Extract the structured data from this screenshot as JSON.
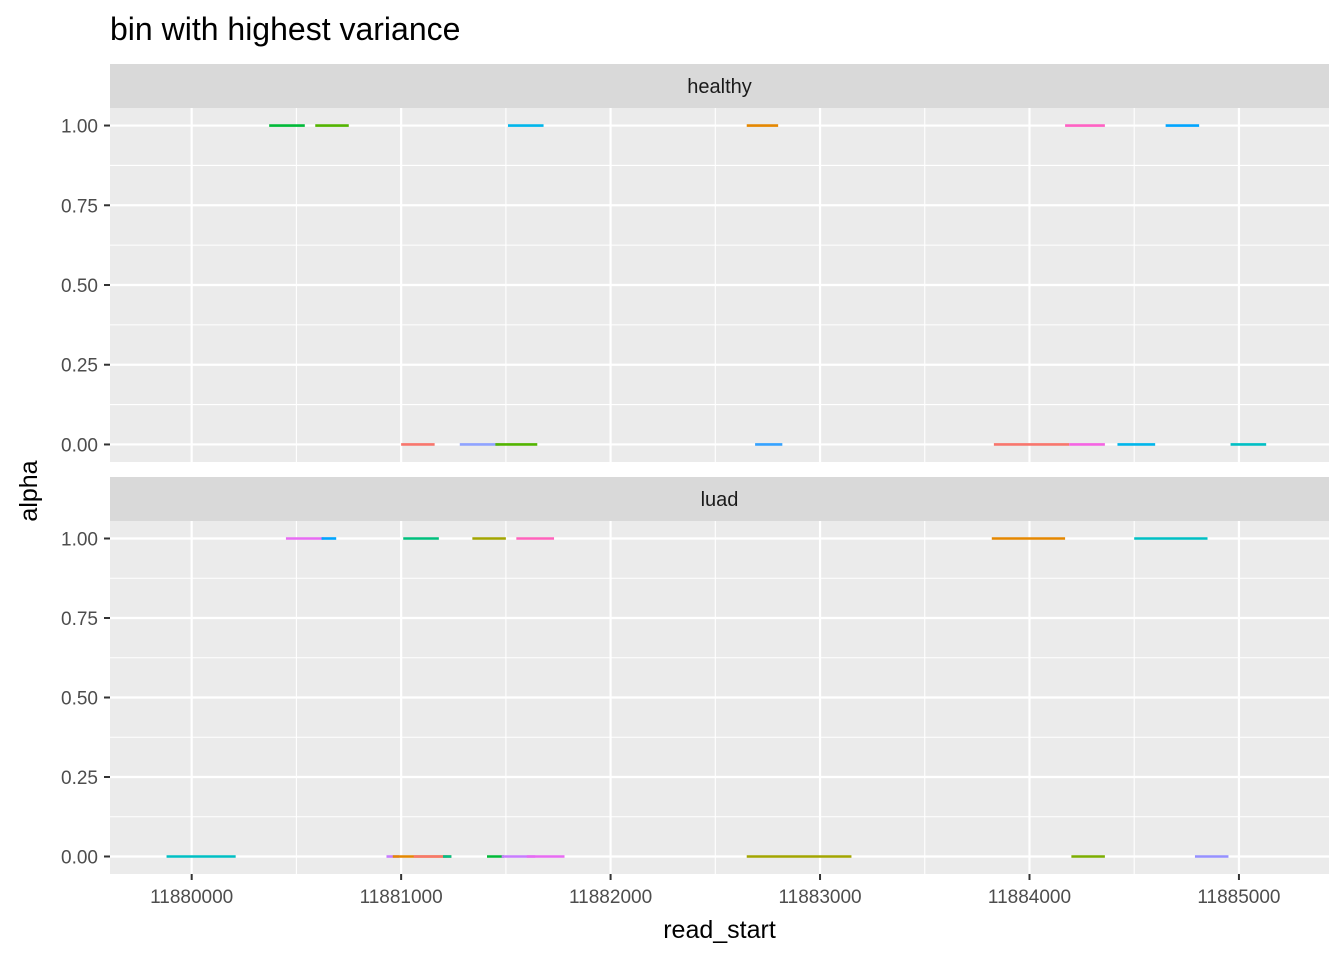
{
  "chart_data": {
    "type": "segment",
    "title": "bin with highest variance",
    "xlabel": "read_start",
    "ylabel": "alpha",
    "xlim": [
      11879610,
      11885430
    ],
    "ylim": [
      -0.055,
      1.055
    ],
    "x_ticks": [
      11880000,
      11881000,
      11882000,
      11883000,
      11884000,
      11885000
    ],
    "x_tick_labels": [
      "11880000",
      "11881000",
      "11882000",
      "11883000",
      "11884000",
      "11885000"
    ],
    "y_ticks": [
      0,
      0.25,
      0.5,
      0.75,
      1
    ],
    "y_tick_labels": [
      "0.00",
      "0.25",
      "0.50",
      "0.75",
      "1.00"
    ],
    "grid": true,
    "legend": "none",
    "panels": [
      {
        "label": "healthy",
        "segments": [
          {
            "x_start": 11880370,
            "x_end": 11880540,
            "y": 1,
            "color": "#00BA38"
          },
          {
            "x_start": 11880590,
            "x_end": 11880750,
            "y": 1,
            "color": "#53B400"
          },
          {
            "x_start": 11881510,
            "x_end": 11881680,
            "y": 1,
            "color": "#00B6EB"
          },
          {
            "x_start": 11882650,
            "x_end": 11882800,
            "y": 1,
            "color": "#E58700"
          },
          {
            "x_start": 11884170,
            "x_end": 11884360,
            "y": 1,
            "color": "#FF61C3"
          },
          {
            "x_start": 11884650,
            "x_end": 11884810,
            "y": 1,
            "color": "#00A5FF"
          },
          {
            "x_start": 11881000,
            "x_end": 11881160,
            "y": 0,
            "color": "#F8766D"
          },
          {
            "x_start": 11881280,
            "x_end": 11881470,
            "y": 0,
            "color": "#8FA3FF"
          },
          {
            "x_start": 11881450,
            "x_end": 11881650,
            "y": 0,
            "color": "#53B400"
          },
          {
            "x_start": 11882690,
            "x_end": 11882820,
            "y": 0,
            "color": "#35A2FF"
          },
          {
            "x_start": 11883830,
            "x_end": 11884190,
            "y": 0,
            "color": "#F8766D"
          },
          {
            "x_start": 11884190,
            "x_end": 11884360,
            "y": 0,
            "color": "#F564E3"
          },
          {
            "x_start": 11884420,
            "x_end": 11884600,
            "y": 0,
            "color": "#00B6EB"
          },
          {
            "x_start": 11884960,
            "x_end": 11885130,
            "y": 0,
            "color": "#00BFC4"
          }
        ]
      },
      {
        "label": "luad",
        "segments": [
          {
            "x_start": 11880450,
            "x_end": 11880630,
            "y": 1,
            "color": "#E76BF3"
          },
          {
            "x_start": 11880620,
            "x_end": 11880690,
            "y": 1,
            "color": "#00A5FF"
          },
          {
            "x_start": 11881010,
            "x_end": 11881180,
            "y": 1,
            "color": "#00BF7D"
          },
          {
            "x_start": 11881340,
            "x_end": 11881500,
            "y": 1,
            "color": "#A3A500"
          },
          {
            "x_start": 11881550,
            "x_end": 11881730,
            "y": 1,
            "color": "#FF62BC"
          },
          {
            "x_start": 11883820,
            "x_end": 11884170,
            "y": 1,
            "color": "#E58700"
          },
          {
            "x_start": 11884500,
            "x_end": 11884850,
            "y": 1,
            "color": "#00BFC4"
          },
          {
            "x_start": 11879880,
            "x_end": 11880210,
            "y": 0,
            "color": "#00BFC4"
          },
          {
            "x_start": 11880930,
            "x_end": 11880990,
            "y": 0,
            "color": "#C77CFF"
          },
          {
            "x_start": 11880960,
            "x_end": 11881240,
            "y": 0,
            "color": "#E58700"
          },
          {
            "x_start": 11881060,
            "x_end": 11881220,
            "y": 0,
            "color": "#F8766D"
          },
          {
            "x_start": 11881200,
            "x_end": 11881240,
            "y": 0,
            "color": "#00C08B"
          },
          {
            "x_start": 11881410,
            "x_end": 11881490,
            "y": 0,
            "color": "#00BA38"
          },
          {
            "x_start": 11881480,
            "x_end": 11881640,
            "y": 0,
            "color": "#C77CFF"
          },
          {
            "x_start": 11881600,
            "x_end": 11881780,
            "y": 0,
            "color": "#E76BF3"
          },
          {
            "x_start": 11882650,
            "x_end": 11883150,
            "y": 0,
            "color": "#A3A500"
          },
          {
            "x_start": 11884200,
            "x_end": 11884360,
            "y": 0,
            "color": "#7CAE00"
          },
          {
            "x_start": 11884790,
            "x_end": 11884950,
            "y": 0,
            "color": "#9590FF"
          }
        ]
      }
    ]
  }
}
